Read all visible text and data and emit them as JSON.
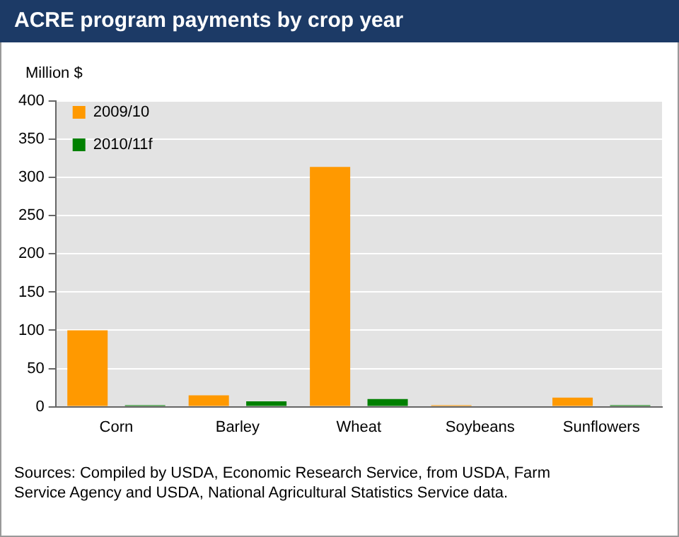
{
  "chart_data": {
    "type": "bar",
    "title": "ACRE program payments by crop year",
    "ylabel": "Million $",
    "categories": [
      "Corn",
      "Barley",
      "Wheat",
      "Soybeans",
      "Sunflowers"
    ],
    "series": [
      {
        "name": "2009/10",
        "color": "#ff9900",
        "values": [
          100,
          15,
          314,
          2,
          12
        ]
      },
      {
        "name": "2010/11f",
        "color": "#008000",
        "values": [
          2,
          7,
          10,
          0,
          2
        ]
      }
    ],
    "ylim": [
      0,
      400
    ],
    "yticks": [
      0,
      50,
      100,
      150,
      200,
      250,
      300,
      350,
      400
    ],
    "grid": "y",
    "legend": "top left",
    "annotations": [
      "Sources: Compiled by USDA, Economic Research Service, from USDA, Farm Service Agency and USDA, National Agricultural Statistics Service data."
    ]
  }
}
